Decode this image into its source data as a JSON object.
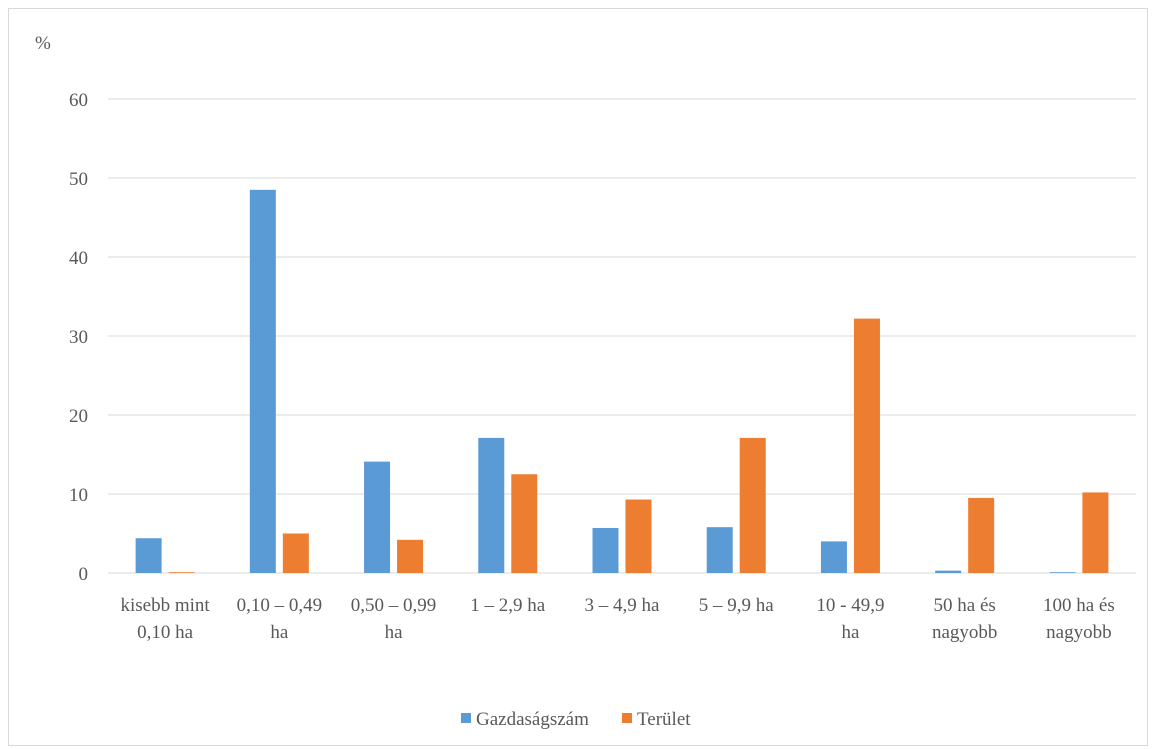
{
  "chart_data": {
    "type": "bar",
    "ylabel": "%",
    "ylim": [
      0,
      60
    ],
    "yticks": [
      "0",
      "10",
      "20",
      "30",
      "40",
      "50",
      "60"
    ],
    "grid": true,
    "legend_position": "bottom",
    "categories": [
      [
        "kisebb mint",
        "0,10 ha"
      ],
      [
        "0,10 – 0,49",
        "ha"
      ],
      [
        "0,50 – 0,99",
        "ha"
      ],
      [
        "1 – 2,9 ha"
      ],
      [
        "3 – 4,9 ha"
      ],
      [
        "5 – 9,9 ha"
      ],
      [
        "10 - 49,9",
        "ha"
      ],
      [
        "50 ha és",
        "nagyobb"
      ],
      [
        "100 ha és",
        "nagyobb"
      ]
    ],
    "series": [
      {
        "name": "Gazdaságszám",
        "color": "#5b9bd5",
        "values": [
          4.4,
          48.5,
          14.1,
          17.1,
          5.7,
          5.8,
          4.0,
          0.3,
          0.1
        ]
      },
      {
        "name": "Terület",
        "color": "#ed7d31",
        "values": [
          0.1,
          5.0,
          4.2,
          12.5,
          9.3,
          17.1,
          32.2,
          9.5,
          10.2
        ]
      }
    ]
  }
}
